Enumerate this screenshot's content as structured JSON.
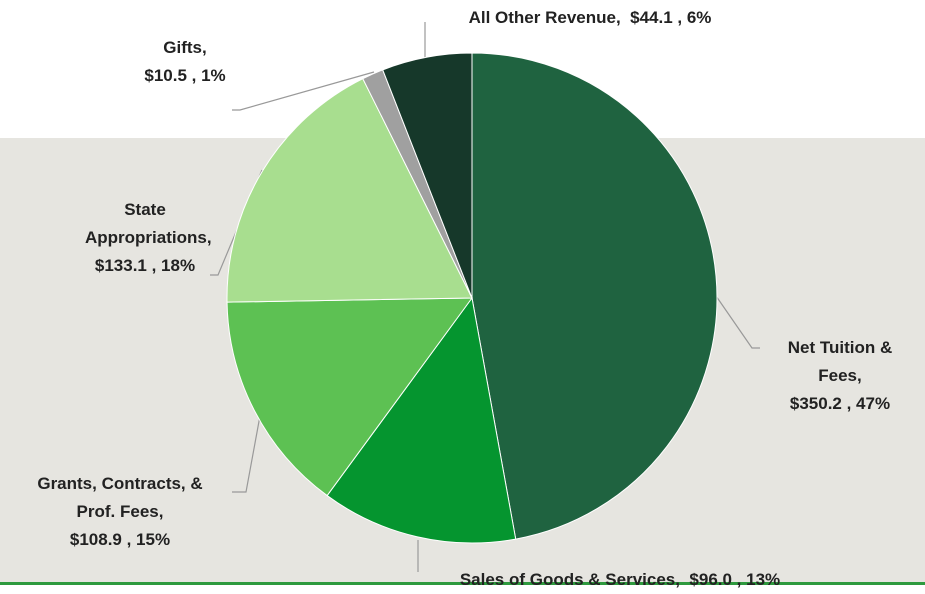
{
  "chart_data": {
    "type": "pie",
    "categories": [
      "Net Tuition & Fees,",
      "Sales of Goods & Services,",
      "Grants, Contracts, & Prof. Fees,",
      "State Appropriations,",
      "Gifts,",
      "All Other Revenue,"
    ],
    "values": [
      350.2,
      96.0,
      108.9,
      133.1,
      10.5,
      44.1
    ],
    "value_labels": [
      "$350.2 , 47%",
      "$96.0 , 13%",
      "$108.9 , 15%",
      "$133.1 , 18%",
      "$10.5 , 1%",
      "$44.1 , 6%"
    ],
    "colors": [
      "#1f6340",
      "#05952f",
      "#5dc153",
      "#a8de8f",
      "#a0a0a0",
      "#16382a"
    ]
  }
}
